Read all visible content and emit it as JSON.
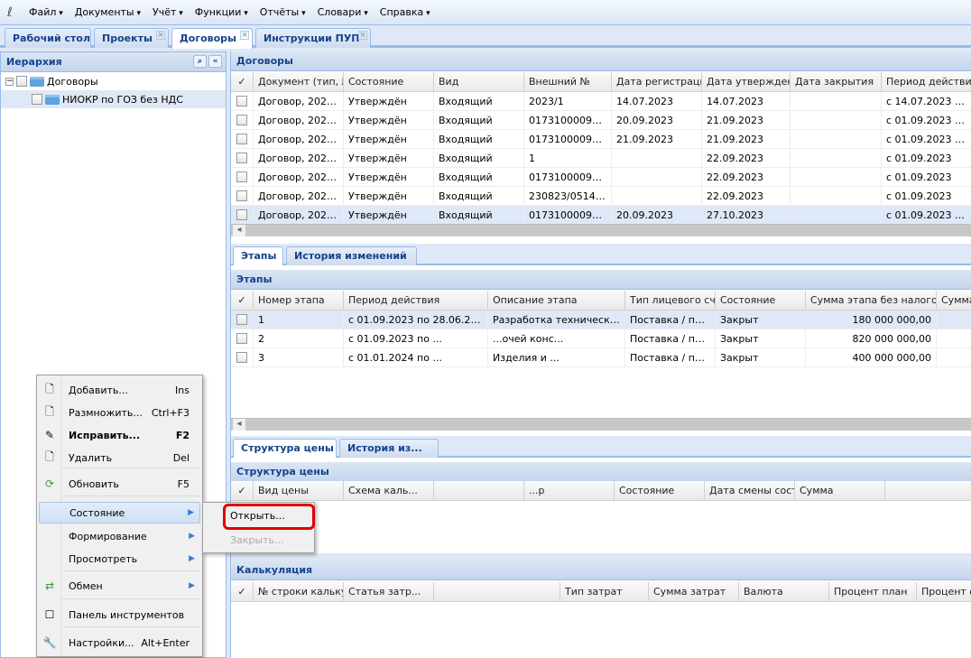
{
  "menu": {
    "items": [
      "Файл",
      "Документы",
      "Учёт",
      "Функции",
      "Отчёты",
      "Словари",
      "Справка"
    ]
  },
  "tabs": [
    {
      "label": "Рабочий стол",
      "closable": false
    },
    {
      "label": "Проекты",
      "closable": true
    },
    {
      "label": "Договоры",
      "closable": true,
      "active": true
    },
    {
      "label": "Инструкции ПУП",
      "closable": true
    }
  ],
  "hierarchy": {
    "title": "Иерархия",
    "nodes": [
      "Договоры",
      "НИОКР по ГОЗ без НДС"
    ]
  },
  "contracts": {
    "title": "Договоры",
    "check_header": "✓",
    "columns": [
      "Документ (тип, №",
      "Состояние",
      "Вид",
      "Внешний №",
      "Дата регистрации...",
      "Дата утверждения",
      "Дата закрытия",
      "Период действия..."
    ],
    "rows": [
      [
        "Договор, 2023/...",
        "Утверждён",
        "Входящий",
        "2023/1",
        "14.07.2023",
        "14.07.2023",
        "",
        "с 14.07.2023 по..."
      ],
      [
        "Договор, 2023/...",
        "Утверждён",
        "Входящий",
        "017310000922...",
        "20.09.2023",
        "21.09.2023",
        "",
        "с 01.09.2023 п..."
      ],
      [
        "Договор, 2023/...",
        "Утверждён",
        "Входящий",
        "017310000922...",
        "21.09.2023",
        "21.09.2023",
        "",
        "с 01.09.2023 п..."
      ],
      [
        "Договор, 2023/...",
        "Утверждён",
        "Входящий",
        "1",
        "",
        "22.09.2023",
        "",
        "с 01.09.2023"
      ],
      [
        "Договор, 2023/...",
        "Утверждён",
        "Входящий",
        "017310000922...",
        "",
        "22.09.2023",
        "",
        "с 01.09.2023"
      ],
      [
        "Договор, 2023/...",
        "Утверждён",
        "Входящий",
        "230823/0514/...",
        "",
        "22.09.2023",
        "",
        "с 01.09.2023"
      ],
      [
        "Договор, 2023/...",
        "Утверждён",
        "Входящий",
        "017310000922...",
        "20.09.2023",
        "27.10.2023",
        "",
        "с 01.09.2023 п..."
      ]
    ]
  },
  "detail_tabs": [
    "Этапы",
    "История изменений"
  ],
  "stages": {
    "title": "Этапы",
    "columns": [
      "Номер этапа",
      "Период действия",
      "Описание этапа",
      "Тип лицевого счёт",
      "Состояние",
      "Сумма этапа без налогов",
      "Сумма"
    ],
    "rows": [
      [
        "1",
        "с 01.09.2023 по 28.06.2024",
        "Разработка технического...",
        "Поставка / про...",
        "Закрыт",
        "180 000 000,00",
        ""
      ],
      [
        "2",
        "с 01.09.2023 по ...",
        "...очей конс...",
        "Поставка / про...",
        "Закрыт",
        "820 000 000,00",
        ""
      ],
      [
        "3",
        "с 01.01.2024 по ...",
        "Изделия и ...",
        "Поставка / про...",
        "Закрыт",
        "400 000 000,00",
        ""
      ]
    ]
  },
  "stage_tabs": [
    "Структура цены",
    "История из..."
  ],
  "price_structure": {
    "title": "Структура цены",
    "columns": [
      "Вид цены",
      "Схема каль...",
      "",
      "...р",
      "Состояние",
      "Дата смены состоя",
      "Сумма"
    ]
  },
  "calculation": {
    "title": "Калькуляция",
    "columns": [
      "№ строки калькул",
      "Статья затр...",
      "",
      "Тип затрат",
      "Сумма затрат",
      "Валюта",
      "Процент план",
      "Процент ф..."
    ]
  },
  "context_menu": {
    "items": [
      {
        "label": "Добавить...",
        "shortcut": "Ins",
        "icon": "document-icon"
      },
      {
        "label": "Размножить...",
        "shortcut": "Ctrl+F3",
        "icon": "document-add-icon"
      },
      {
        "label": "Исправить...",
        "shortcut": "F2",
        "icon": "edit-icon",
        "bold": true
      },
      {
        "label": "Удалить",
        "shortcut": "Del",
        "icon": "delete-icon"
      },
      {
        "label": "Обновить",
        "shortcut": "F5",
        "icon": "refresh-icon"
      },
      {
        "label": "Состояние",
        "submenu": true
      },
      {
        "label": "Формирование",
        "submenu": true
      },
      {
        "label": "Просмотреть",
        "submenu": true
      },
      {
        "label": "Обмен",
        "submenu": true,
        "icon": "exchange-icon"
      },
      {
        "label": "Панель инструментов",
        "icon": "checkbox-icon"
      },
      {
        "label": "Настройки...",
        "shortcut": "Alt+Enter",
        "icon": "wrench-icon"
      }
    ]
  },
  "submenu": {
    "items": [
      {
        "label": "Открыть...",
        "enabled": true,
        "highlighted": true
      },
      {
        "label": "Закрыть...",
        "enabled": false
      }
    ]
  },
  "colors": {
    "accent": "#15428b",
    "border": "#99bbe8",
    "highlight": "#e00000"
  }
}
